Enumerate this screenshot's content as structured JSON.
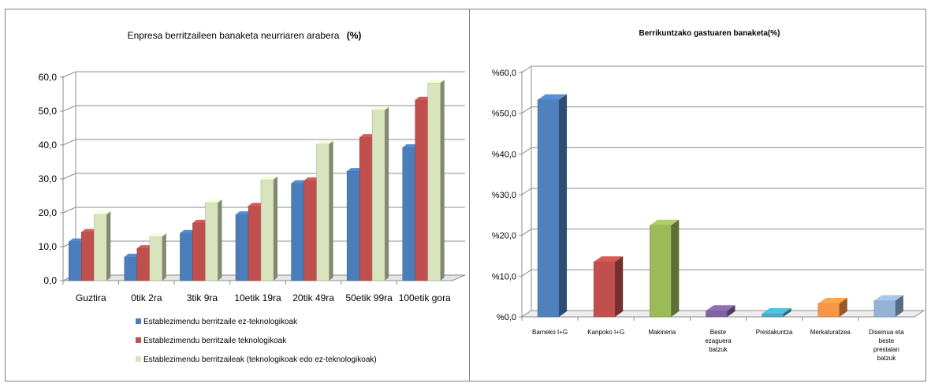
{
  "chart_data": [
    {
      "type": "bar",
      "title": "Enpresa berritzaileen banaketa neurriaren arabera",
      "title_suffix": "(%)",
      "categories": [
        "Guztira",
        "0tik 2ra",
        "3tik 9ra",
        "10etik 19ra",
        "20tik 49ra",
        "50etik 99ra",
        "100etik gora"
      ],
      "series": [
        {
          "name": "Establezimendu berritzaile ez-teknologikoak",
          "color": "#4a7ebb",
          "values": [
            11.5,
            7.0,
            14.0,
            19.5,
            28.7,
            32.3,
            39.3
          ]
        },
        {
          "name": "Establezimendu berritzaile teknologikoak",
          "color": "#c0504d",
          "values": [
            14.3,
            9.5,
            17.0,
            22.0,
            29.5,
            42.3,
            53.3
          ]
        },
        {
          "name": "Establezimendu berritzaileak (teknologikoak edo ez-teknologikoak)",
          "color": "#d7e4bd",
          "values": [
            19.5,
            13.0,
            23.0,
            29.8,
            40.3,
            50.3,
            58.3
          ]
        }
      ],
      "yticks": [
        "0,0",
        "10,0",
        "20,0",
        "30,0",
        "40,0",
        "50,0",
        "60,0"
      ],
      "ylim": [
        0,
        60
      ],
      "grid": true,
      "legend": "bottom"
    },
    {
      "type": "bar",
      "title": "Berrikuntzako gastuaren banaketa(%)",
      "categories": [
        "Barneko I+G",
        "Kanpoko I+G",
        "Makineria",
        "Beste ezaguera batzuk",
        "Prestakuntza",
        "Merkaturatzea",
        "Diseinua eta beste prestalan batzuk"
      ],
      "values": [
        53.3,
        13.5,
        22.5,
        1.5,
        0.8,
        3.3,
        4.0
      ],
      "colors": [
        "#4f81bd",
        "#c0504d",
        "#9bbb59",
        "#8064a2",
        "#4bacc6",
        "#f79646",
        "#95b3d7"
      ],
      "yticks": [
        "%0,0",
        "%10,0",
        "%20,0",
        "%30,0",
        "%40,0",
        "%50,0",
        "%60,0"
      ],
      "ylim": [
        0,
        60
      ],
      "grid": true,
      "legend": "none"
    }
  ]
}
